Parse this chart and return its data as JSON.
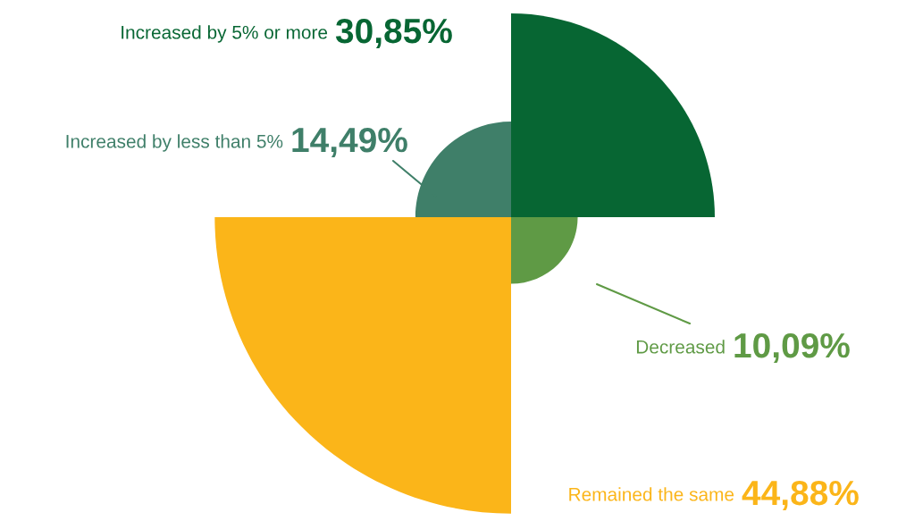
{
  "chart_data": {
    "type": "other",
    "categories": [
      "Increased by 5% or more",
      "Decreased",
      "Remained the same",
      "Increased by less than 5%"
    ],
    "values": [
      30.85,
      10.09,
      44.88,
      14.49
    ],
    "value_labels": [
      "30,85%",
      "10,09%",
      "44,88%",
      "14,49%"
    ],
    "colors": [
      "#076633",
      "#5f9a45",
      "#fbb519",
      "#3f7f69"
    ]
  }
}
